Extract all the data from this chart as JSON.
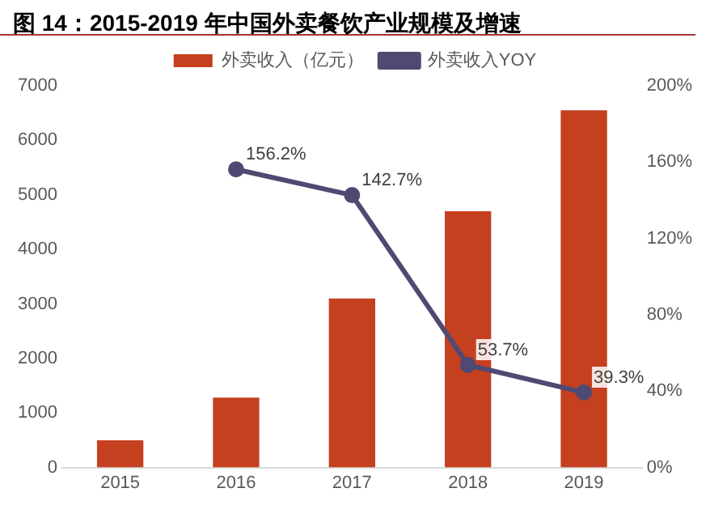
{
  "chart_data": {
    "type": "bar",
    "title": "图 14：2015-2019 年中国外卖餐饮产业规模及增速",
    "categories": [
      "2015",
      "2016",
      "2017",
      "2018",
      "2019"
    ],
    "series": [
      {
        "name": "外卖收入（亿元）",
        "color": "#c5401f",
        "values": [
          500,
          1280,
          3100,
          4700,
          6550
        ]
      },
      {
        "name": "外卖收入YOY",
        "type": "line",
        "axis": "y2",
        "color": "#4f4a72",
        "marker": "circle",
        "values": [
          null,
          156.2,
          142.7,
          53.7,
          39.3
        ],
        "value_labels": [
          null,
          "156.2%",
          "142.7%",
          "53.7%",
          "39.3%"
        ]
      }
    ],
    "ylim": [
      0,
      7000
    ],
    "yticks": [
      0,
      1000,
      2000,
      3000,
      4000,
      5000,
      6000,
      7000
    ],
    "y2lim": [
      0,
      200
    ],
    "y2ticks": [
      {
        "value": 0,
        "label": "0%"
      },
      {
        "value": 40,
        "label": "40%"
      },
      {
        "value": 80,
        "label": "80%"
      },
      {
        "value": 120,
        "label": "120%"
      },
      {
        "value": 160,
        "label": "160%"
      },
      {
        "value": 200,
        "label": "200%"
      }
    ],
    "grid": false,
    "legend": "top"
  }
}
